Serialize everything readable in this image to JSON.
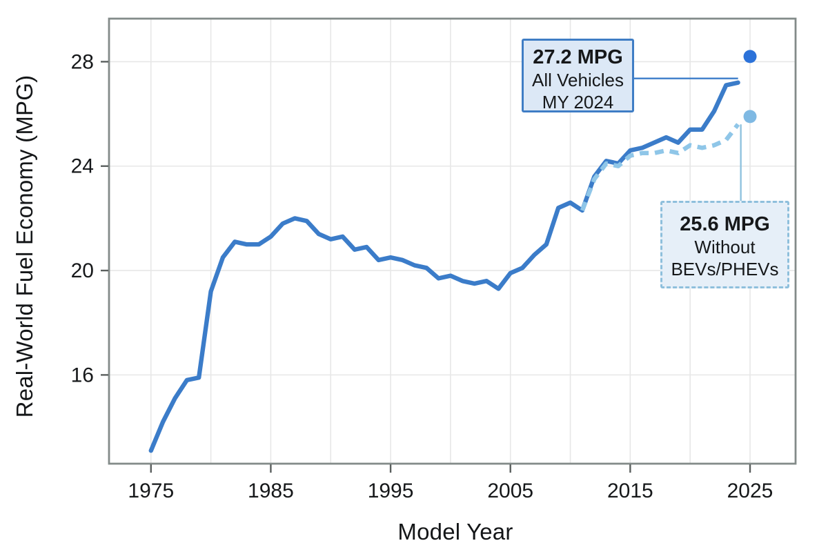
{
  "chart": {
    "xlabel": "Model Year",
    "ylabel": "Real-World Fuel Economy (MPG)"
  },
  "chart_data": {
    "type": "line",
    "title": "",
    "xlabel": "Model Year",
    "ylabel": "Real-World Fuel Economy (MPG)",
    "x_ticks": [
      1975,
      1985,
      1995,
      2005,
      2015,
      2025
    ],
    "y_ticks": [
      16,
      20,
      24,
      28
    ],
    "xlim": [
      1971.5,
      2028.8
    ],
    "ylim": [
      12.6,
      29.65
    ],
    "grid": true,
    "x_grid_step_years": 5,
    "legend_position": "none",
    "series": [
      {
        "name": "All Vehicles",
        "style": "solid",
        "color": "#3b7cc9",
        "x": [
          1975,
          1976,
          1977,
          1978,
          1979,
          1980,
          1981,
          1982,
          1983,
          1984,
          1985,
          1986,
          1987,
          1988,
          1989,
          1990,
          1991,
          1992,
          1993,
          1994,
          1995,
          1996,
          1997,
          1998,
          1999,
          2000,
          2001,
          2002,
          2003,
          2004,
          2005,
          2006,
          2007,
          2008,
          2009,
          2010,
          2011,
          2012,
          2013,
          2014,
          2015,
          2016,
          2017,
          2018,
          2019,
          2020,
          2021,
          2022,
          2023,
          2024
        ],
        "values": [
          13.1,
          14.2,
          15.1,
          15.8,
          15.9,
          19.2,
          20.5,
          21.1,
          21.0,
          21.0,
          21.3,
          21.8,
          22.0,
          21.9,
          21.4,
          21.2,
          21.3,
          20.8,
          20.9,
          20.4,
          20.5,
          20.4,
          20.2,
          20.1,
          19.7,
          19.8,
          19.6,
          19.5,
          19.6,
          19.3,
          19.9,
          20.1,
          20.6,
          21.0,
          22.4,
          22.6,
          22.3,
          23.6,
          24.2,
          24.1,
          24.6,
          24.7,
          24.9,
          25.1,
          24.9,
          25.4,
          25.4,
          26.1,
          27.1,
          27.2
        ]
      },
      {
        "name": "Without BEVs/PHEVs",
        "style": "dashed",
        "color": "#8fc6e8",
        "x": [
          2011,
          2012,
          2013,
          2014,
          2015,
          2016,
          2017,
          2018,
          2019,
          2020,
          2021,
          2022,
          2023,
          2024
        ],
        "values": [
          22.3,
          23.5,
          24.1,
          24.0,
          24.4,
          24.5,
          24.5,
          24.6,
          24.5,
          24.8,
          24.7,
          24.8,
          25.0,
          25.6
        ]
      }
    ],
    "projected_points": [
      {
        "series": "All Vehicles",
        "x": 2025,
        "value": 28.2,
        "color": "#2c72d9"
      },
      {
        "series": "Without BEVs/PHEVs",
        "x": 2025,
        "value": 25.9,
        "color": "#7fb9e3"
      }
    ],
    "annotations": [
      {
        "title": "27.2 MPG",
        "lines": [
          "All Vehicles",
          "MY 2024"
        ],
        "x": 2024,
        "value": 27.2,
        "style": "solid-box"
      },
      {
        "title": "25.6 MPG",
        "lines": [
          "Without",
          "BEVs/PHEVs"
        ],
        "x": 2024,
        "value": 25.6,
        "style": "dashed-box"
      }
    ]
  }
}
